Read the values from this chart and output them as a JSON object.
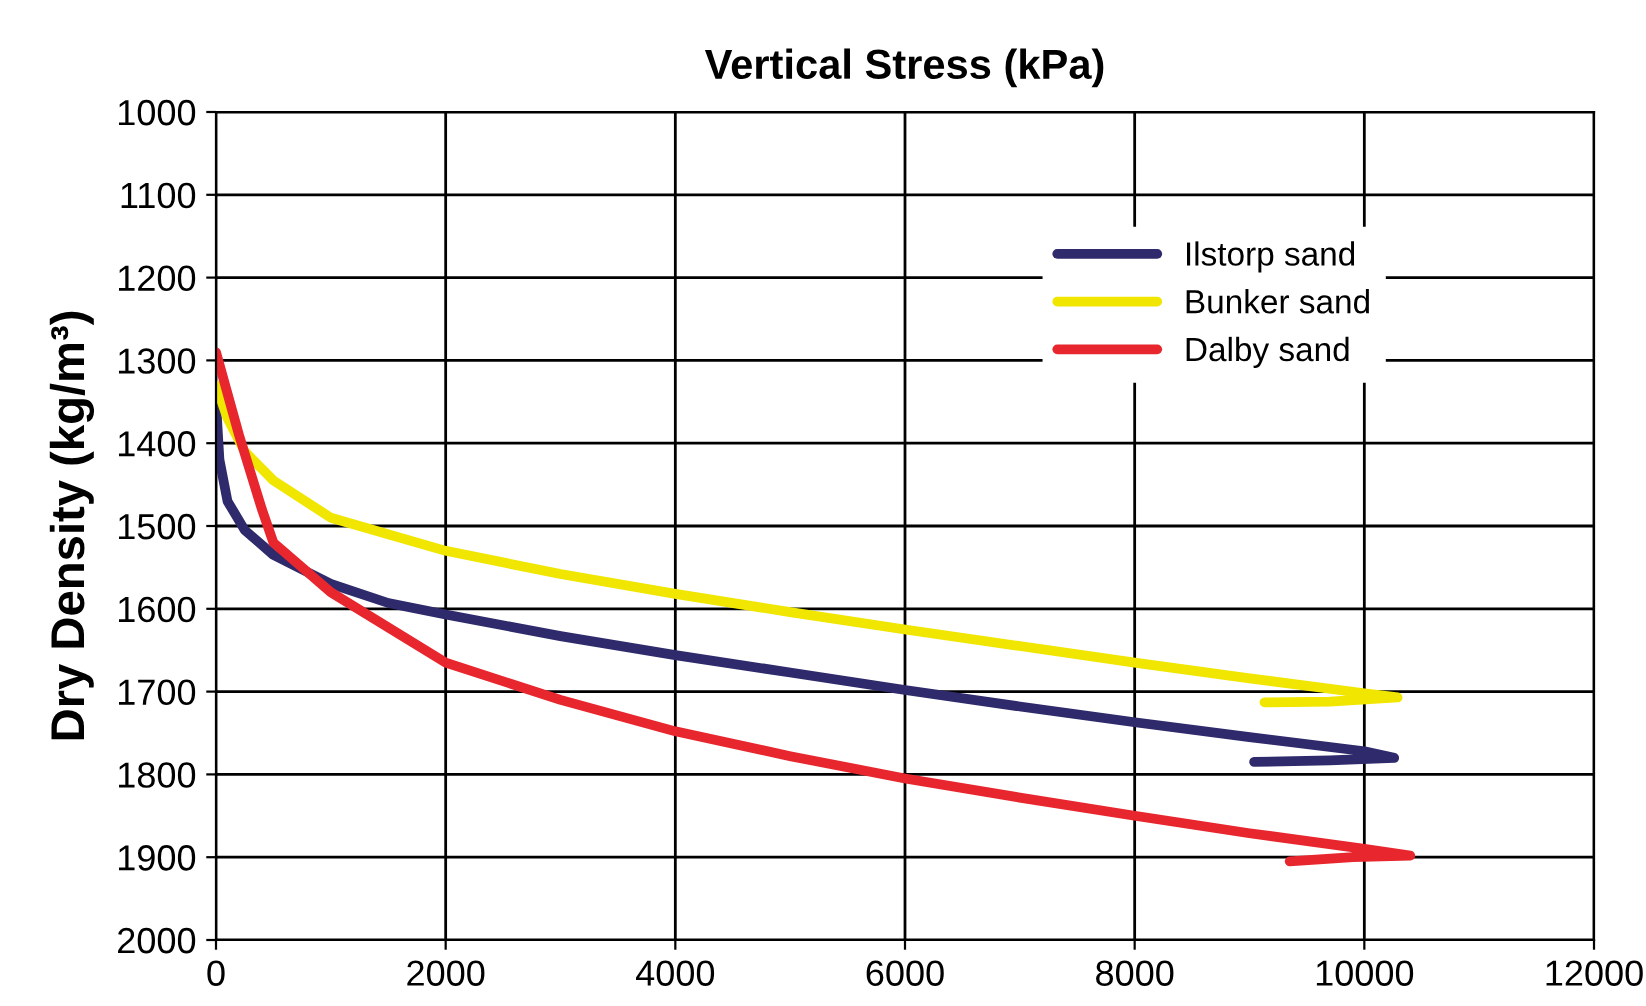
{
  "chart_data": {
    "type": "line",
    "xlabel": "Vertical Stress (kPa)",
    "ylabel": "Dry Density (kg/m³)",
    "xlim": [
      0,
      12000
    ],
    "xticks": [
      0,
      2000,
      4000,
      6000,
      8000,
      10000,
      12000
    ],
    "ylim": [
      2000,
      1000
    ],
    "yticks": [
      1000,
      1100,
      1200,
      1300,
      1400,
      1500,
      1600,
      1700,
      1800,
      1900,
      2000
    ],
    "grid": true,
    "legend": "top right",
    "marker": "none",
    "line_style": "solid",
    "series": [
      {
        "name": "Ilstorp sand",
        "color": "#2e2a6b",
        "x": [
          0,
          30,
          100,
          250,
          500,
          1000,
          1500,
          2000,
          3000,
          4000,
          5000,
          6000,
          7000,
          8000,
          9000,
          10000,
          10260,
          9700,
          9040
        ],
        "values": [
          1350,
          1420,
          1470,
          1505,
          1535,
          1570,
          1593,
          1607,
          1633,
          1656,
          1677,
          1698,
          1718,
          1737,
          1755,
          1772,
          1780,
          1783,
          1785
        ]
      },
      {
        "name": "Bunker sand",
        "color": "#f0e600",
        "x": [
          0,
          100,
          250,
          500,
          1000,
          2000,
          3000,
          4000,
          5000,
          6000,
          7000,
          8000,
          9000,
          10000,
          10290,
          9700,
          9130
        ],
        "values": [
          1330,
          1370,
          1410,
          1445,
          1490,
          1530,
          1558,
          1582,
          1604,
          1625,
          1645,
          1665,
          1684,
          1702,
          1707,
          1712,
          1713
        ]
      },
      {
        "name": "Dalby sand",
        "color": "#e8262e",
        "x": [
          0,
          200,
          400,
          500,
          1000,
          2000,
          3000,
          4000,
          5000,
          6000,
          7000,
          8000,
          9000,
          10000,
          10400,
          9900,
          9350
        ],
        "values": [
          1290,
          1390,
          1480,
          1520,
          1580,
          1665,
          1710,
          1748,
          1778,
          1805,
          1828,
          1850,
          1871,
          1890,
          1898,
          1900,
          1905
        ]
      }
    ]
  }
}
